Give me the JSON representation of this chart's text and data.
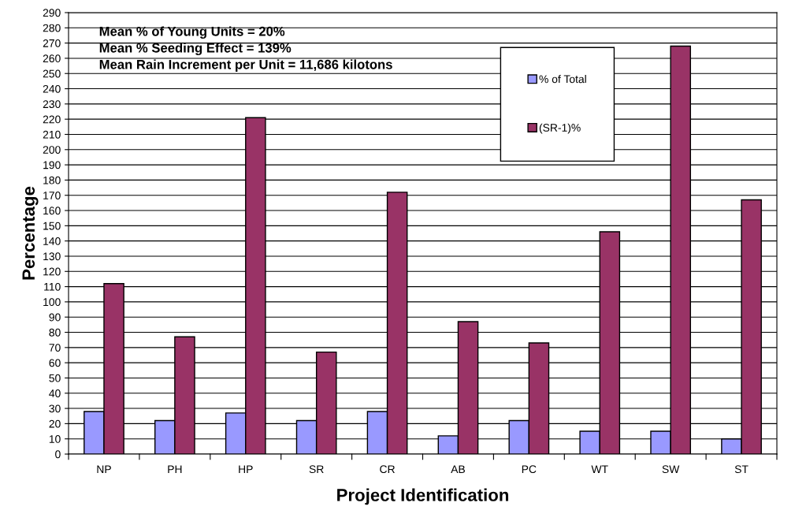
{
  "chart_data": {
    "type": "bar",
    "xlabel": "Project Identification",
    "ylabel": "Percentage",
    "categories": [
      "NP",
      "PH",
      "HP",
      "SR",
      "CR",
      "AB",
      "PC",
      "WT",
      "SW",
      "ST"
    ],
    "series": [
      {
        "name": "% of Total",
        "color": "#9999ff",
        "values": [
          28,
          22,
          27,
          22,
          28,
          12,
          22,
          15,
          15,
          10
        ]
      },
      {
        "name": "(SR-1)%",
        "color": "#993366",
        "values": [
          112,
          77,
          221,
          67,
          172,
          87,
          73,
          146,
          268,
          167
        ]
      }
    ],
    "ylim": [
      0,
      290
    ],
    "yticks": [
      0,
      10,
      20,
      30,
      40,
      50,
      60,
      70,
      80,
      90,
      100,
      110,
      120,
      130,
      140,
      150,
      160,
      170,
      180,
      190,
      200,
      210,
      220,
      230,
      240,
      250,
      260,
      270,
      280,
      290
    ],
    "grid": "y",
    "legend": "top right",
    "annotations": [
      "Mean % of Young Units = 20%",
      "Mean % Seeding Effect = 139%",
      "Mean Rain Increment per Unit = 11,686 kilotons"
    ]
  }
}
